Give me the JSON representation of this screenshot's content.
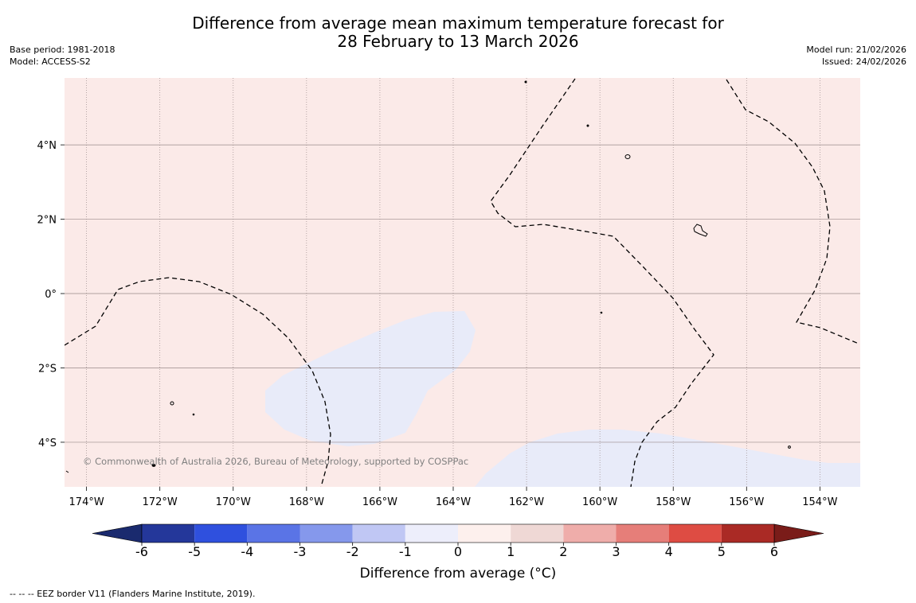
{
  "header": {
    "title_line1": "Difference from average mean maximum temperature forecast for",
    "title_line2": "28 February to 13 March 2026",
    "base_period": "Base period: 1981-2018",
    "model": "Model: ACCESS-S2",
    "model_run": "Model run: 21/02/2026",
    "issued": "Issued: 24/02/2026"
  },
  "map": {
    "lon_range": [
      -174.6,
      -152.9
    ],
    "lat_range": [
      -5.2,
      5.8
    ],
    "lon_ticks": [
      {
        "value": -174,
        "label": "174°W"
      },
      {
        "value": -172,
        "label": "172°W"
      },
      {
        "value": -170,
        "label": "170°W"
      },
      {
        "value": -168,
        "label": "168°W"
      },
      {
        "value": -166,
        "label": "166°W"
      },
      {
        "value": -164,
        "label": "164°W"
      },
      {
        "value": -162,
        "label": "162°W"
      },
      {
        "value": -160,
        "label": "160°W"
      },
      {
        "value": -158,
        "label": "158°W"
      },
      {
        "value": -156,
        "label": "156°W"
      },
      {
        "value": -154,
        "label": "154°W"
      }
    ],
    "lat_ticks": [
      {
        "value": 4,
        "label": "4°N"
      },
      {
        "value": 2,
        "label": "2°N"
      },
      {
        "value": 0,
        "label": "0°"
      },
      {
        "value": -2,
        "label": "2°S"
      },
      {
        "value": -4,
        "label": "4°S"
      }
    ],
    "background_class": "0 to 1",
    "copyright": "© Commonwealth of Australia 2026, Bureau of Meteorology, supported by COSPPac",
    "colors": {
      "background": "#fbeae8",
      "cool_patch": "#e8ebf9",
      "grid": "#9a8a8a",
      "eez": "#000000"
    }
  },
  "colorbar": {
    "ticks": [
      "-6",
      "-5",
      "-4",
      "-3",
      "-2",
      "-1",
      "0",
      "1",
      "2",
      "3",
      "4",
      "5",
      "6"
    ],
    "colors": [
      "#24379a",
      "#2f50de",
      "#5a74e6",
      "#8598ec",
      "#c0c7f4",
      "#edeefb",
      "#fdf0ed",
      "#efd8d5",
      "#efadaa",
      "#e67e79",
      "#de4c43",
      "#aa2a25"
    ],
    "under_color": "#1a2a6e",
    "over_color": "#7a1c19",
    "label": "Difference from average (°C)"
  },
  "footnote": "--  --  -- EEZ border V11 (Flanders Marine Institute, 2019)."
}
